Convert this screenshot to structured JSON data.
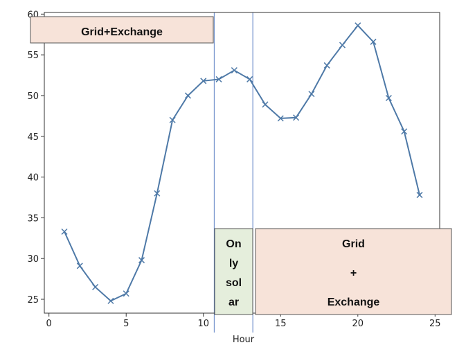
{
  "chart_data": {
    "type": "line",
    "xlabel": "Hour",
    "ylabel": "",
    "xlim": [
      -0.3,
      25.3
    ],
    "ylim": [
      23.3,
      60.2
    ],
    "xticks": [
      0,
      5,
      10,
      15,
      20,
      25
    ],
    "yticks": [
      25,
      30,
      35,
      40,
      45,
      50,
      55,
      60
    ],
    "grid": false,
    "marker": "x",
    "line_color": "#4e79a7",
    "x": [
      1,
      2,
      3,
      4,
      5,
      6,
      7,
      8,
      9,
      10,
      11,
      12,
      13,
      14,
      15,
      16,
      17,
      18,
      19,
      20,
      21,
      22,
      23,
      24
    ],
    "y": [
      33.3,
      29.1,
      26.5,
      24.8,
      25.7,
      29.8,
      38.0,
      47.0,
      50.0,
      51.8,
      52.0,
      53.1,
      52.0,
      48.9,
      47.2,
      47.3,
      50.2,
      53.7,
      56.2,
      58.6,
      56.6,
      49.7,
      45.6,
      37.8
    ],
    "vlines": [
      10.7,
      13.2
    ],
    "annotations": [
      {
        "id": "grid-exchange-left",
        "lines": [
          "Grid+Exchange"
        ],
        "fill": "#f7e3d9"
      },
      {
        "id": "only-solar",
        "lines": [
          "On",
          "ly",
          "sol",
          "ar"
        ],
        "fill": "#e5eedc"
      },
      {
        "id": "grid-exchange-right",
        "lines": [
          "Grid",
          "+",
          "Exchange"
        ],
        "fill": "#f7e3d9"
      }
    ]
  }
}
